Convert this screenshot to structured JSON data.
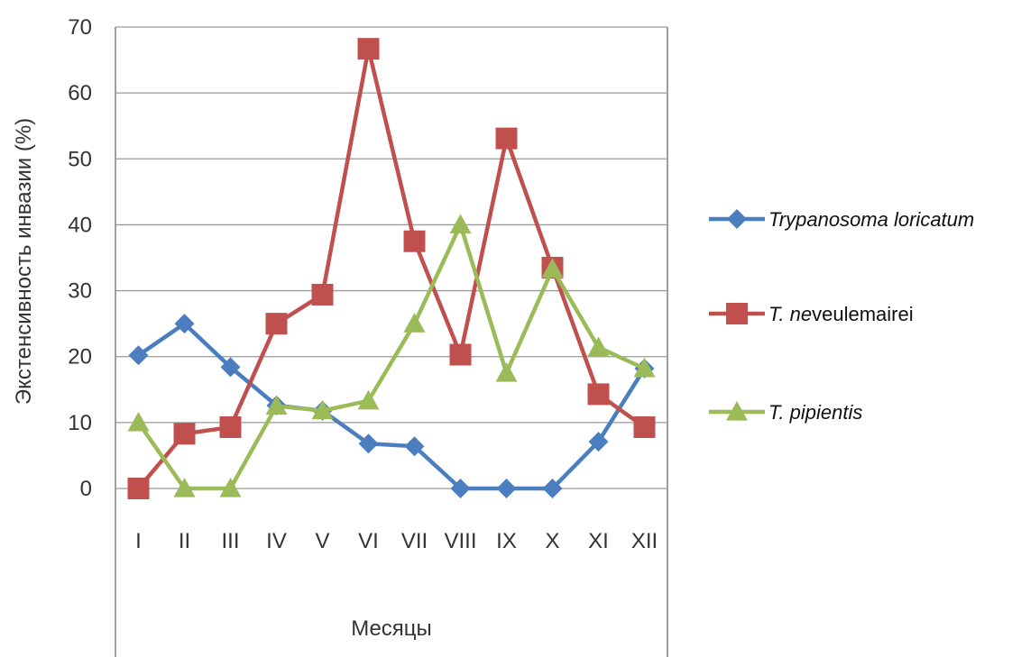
{
  "chart_data": {
    "type": "line",
    "title": "",
    "xlabel": "Месяцы",
    "ylabel": "Экстенсивность инвазии (%)",
    "ylim": [
      0,
      70
    ],
    "yticks": [
      0,
      10,
      20,
      30,
      40,
      50,
      60,
      70
    ],
    "categories": [
      "I",
      "II",
      "III",
      "IV",
      "V",
      "VI",
      "VII",
      "VIII",
      "IX",
      "X",
      "XI",
      "XII"
    ],
    "grid": "horizontal",
    "legend_position": "right",
    "series": [
      {
        "name": "Trypanosoma loricatum",
        "legend_parts": [
          {
            "text": "Trypanosoma loricatum",
            "italic": true
          }
        ],
        "color": "#4a7ebf",
        "marker": "diamond",
        "values": [
          20.2,
          25,
          18.4,
          12.6,
          11.8,
          6.8,
          6.4,
          0,
          0,
          0,
          7.1,
          18.2
        ]
      },
      {
        "name": "T. neveulemairei",
        "legend_parts": [
          {
            "text": "T. ne",
            "italic": true
          },
          {
            "text": "veulemairei",
            "italic": false
          }
        ],
        "color": "#c0504d",
        "marker": "square",
        "values": [
          0,
          8.3,
          9.3,
          25,
          29.4,
          66.7,
          37.5,
          20.3,
          53.1,
          33.5,
          14.3,
          9.3
        ]
      },
      {
        "name": "T. pipientis",
        "legend_parts": [
          {
            "text": "T. pipientis",
            "italic": true
          }
        ],
        "color": "#9bbb59",
        "marker": "triangle",
        "values": [
          10,
          0,
          0,
          12.5,
          11.8,
          13.3,
          25,
          40,
          17.5,
          33.3,
          21.4,
          18.2
        ]
      }
    ]
  }
}
